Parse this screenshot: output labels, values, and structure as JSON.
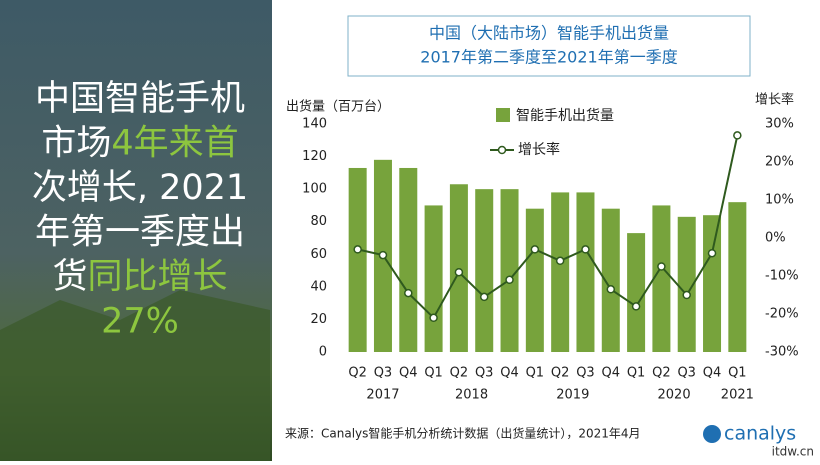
{
  "headline": {
    "lines": [
      [
        {
          "text": "中国智能手机",
          "color": "#ffffff"
        }
      ],
      [
        {
          "text": "市场",
          "color": "#ffffff"
        },
        {
          "text": "4年来首",
          "color": "#8dc63f"
        }
      ],
      [
        {
          "text": "次增长, 2021",
          "color": "#ffffff"
        }
      ],
      [
        {
          "text": "年第一季度出",
          "color": "#ffffff"
        }
      ],
      [
        {
          "text": "货",
          "color": "#ffffff"
        },
        {
          "text": "同比增长",
          "color": "#8dc63f"
        }
      ],
      [
        {
          "text": "27%",
          "color": "#8dc63f"
        }
      ]
    ]
  },
  "chart_data": {
    "type": "bar_line",
    "title": [
      "中国（大陆市场）智能手机出货量",
      "2017年第二季度至2021年第一季度"
    ],
    "y_label": "出货量（百万台）",
    "y2_label": "增长率",
    "categories": [
      "Q2",
      "Q3",
      "Q4",
      "Q1",
      "Q2",
      "Q3",
      "Q4",
      "Q1",
      "Q2",
      "Q3",
      "Q4",
      "Q1",
      "Q2",
      "Q3",
      "Q4",
      "Q1"
    ],
    "year_groups": [
      {
        "label": "2017",
        "count": 3
      },
      {
        "label": "2018",
        "count": 4
      },
      {
        "label": "2019",
        "count": 4
      },
      {
        "label": "2020",
        "count": 4
      },
      {
        "label": "2021",
        "count": 1
      }
    ],
    "series": [
      {
        "name": "智能手机出货量",
        "color": "#77a33c",
        "values": [
          113,
          118,
          113,
          90,
          103,
          100,
          100,
          88,
          98,
          98,
          88,
          73,
          90,
          83,
          84,
          92
        ]
      },
      {
        "name": "增长率",
        "color": "#2f5a1e",
        "axis": "y2",
        "values": [
          -3,
          -4.5,
          -14.5,
          -21,
          -9,
          -15.5,
          -11,
          -3,
          -6,
          -3,
          -13.5,
          -18,
          -7.5,
          -15,
          -4,
          27
        ]
      }
    ],
    "ylim": [
      0,
      140
    ],
    "yticks": [
      0,
      20,
      40,
      60,
      80,
      100,
      120,
      140
    ],
    "y2lim": [
      -30,
      30
    ],
    "y2ticks": [
      {
        "value": -30,
        "label": "-30%"
      },
      {
        "value": -20,
        "label": "-20%"
      },
      {
        "value": -10,
        "label": "-10%"
      },
      {
        "value": 0,
        "label": "0%"
      },
      {
        "value": 10,
        "label": "10%"
      },
      {
        "value": 20,
        "label": "20%"
      },
      {
        "value": 30,
        "label": "30%"
      }
    ],
    "source": "来源：Canalys智能手机分析统计数据（出货量统计），2021年4月"
  },
  "logo": "canalys",
  "watermark": "itdw.cn"
}
